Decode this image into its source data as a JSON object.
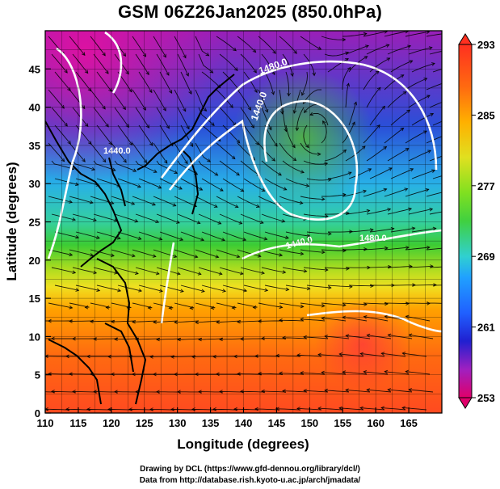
{
  "title": "GSM 06Z26Jan2025 (850.0hPa)",
  "x_axis": {
    "title": "Longitude (degrees)",
    "ticks": [
      "110",
      "115",
      "120",
      "125",
      "130",
      "135",
      "140",
      "145",
      "150",
      "155",
      "160",
      "165"
    ],
    "range": [
      110,
      170
    ]
  },
  "y_axis": {
    "title": "Latitude  (degrees)",
    "ticks": [
      "0",
      "5",
      "10",
      "15",
      "20",
      "25",
      "30",
      "35",
      "40",
      "45"
    ],
    "range": [
      0,
      50
    ]
  },
  "colorbar": {
    "labels": [
      "293",
      "285",
      "277",
      "269",
      "261",
      "253"
    ],
    "range": [
      253,
      293
    ],
    "colors": [
      "#e0006a",
      "#a020c0",
      "#2020d0",
      "#2060ff",
      "#20a0ff",
      "#30d0d0",
      "#40d040",
      "#90e020",
      "#e0e020",
      "#ffb000",
      "#ff6a10",
      "#ff3020"
    ]
  },
  "contours": {
    "labels": [
      "1480.0",
      "1440.0",
      "1440.0",
      "1440.0",
      "1480.0"
    ]
  },
  "credits": {
    "line1": "Drawing by DCL (https://www.gfd-dennou.org/library/dcl/)",
    "line2": "Data from http://database.rish.kyoto-u.ac.jp/arch/jmadata/"
  }
}
